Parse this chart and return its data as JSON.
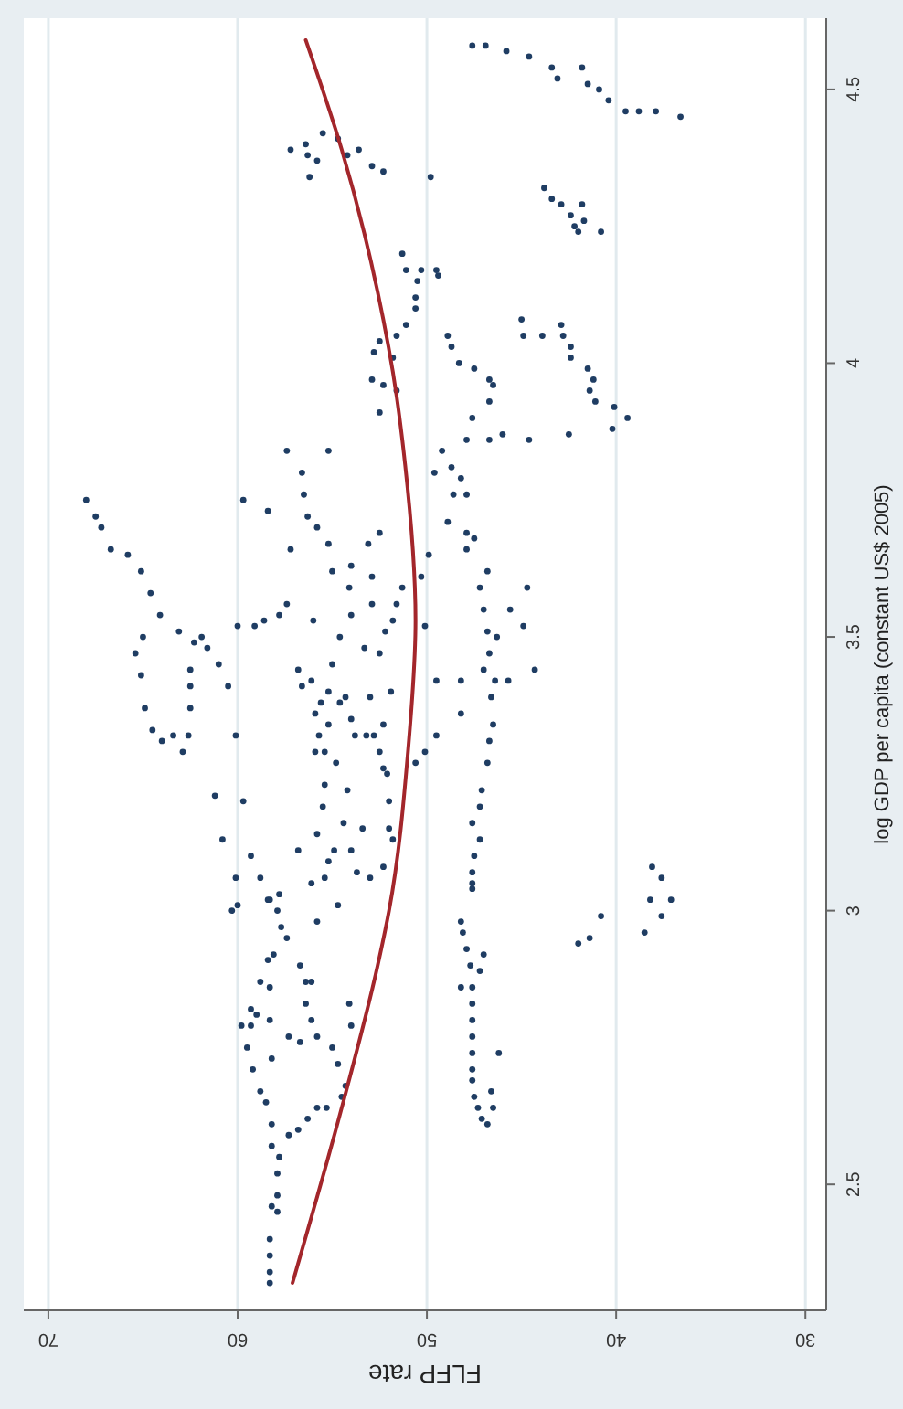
{
  "chart_data": {
    "type": "scatter",
    "xlabel": "FLFP rate",
    "ylabel": "log GDP per capita (constant US$ 2005)",
    "xlim": [
      71.3,
      28.9
    ],
    "ylim": [
      2.27,
      4.63
    ],
    "xticks": [
      70,
      60,
      50,
      40,
      30
    ],
    "yticks": [
      2.5,
      3,
      3.5,
      4,
      4.5
    ],
    "grid": "x",
    "series": [
      {
        "color": "#1f3d63",
        "marker": "circle",
        "values": [
          4.58,
          4.58,
          4.57,
          4.56,
          4.54,
          4.52,
          4.54,
          4.51,
          4.5,
          4.48,
          4.46,
          4.46,
          4.46,
          4.45,
          4.39,
          4.4,
          4.38,
          4.42,
          4.41,
          4.38,
          4.39,
          4.37,
          4.34,
          4.36,
          4.35,
          4.34,
          4.32,
          4.3,
          4.29,
          4.27,
          4.29,
          4.25,
          4.26,
          4.24,
          4.24,
          4.2,
          4.17,
          4.17,
          4.17,
          4.16,
          4.15,
          4.12,
          4.1,
          4.07,
          4.05,
          4.04,
          4.02,
          4.01,
          3.97,
          3.96,
          3.95,
          3.91,
          4.05,
          4.03,
          4.0,
          3.99,
          3.97,
          3.96,
          3.93,
          3.9,
          3.86,
          3.86,
          3.87,
          3.86,
          3.87,
          4.08,
          4.05,
          4.05,
          4.07,
          4.05,
          4.03,
          4.01,
          3.99,
          3.97,
          3.95,
          3.93,
          3.92,
          3.9,
          3.88,
          3.84,
          3.84,
          3.75,
          3.72,
          3.7,
          3.66,
          3.65,
          3.62,
          3.58,
          3.54,
          3.5,
          3.47,
          3.43,
          3.37,
          3.33,
          3.31,
          3.32,
          3.29,
          3.32,
          3.37,
          3.41,
          3.44,
          3.49,
          3.5,
          3.51,
          3.48,
          3.45,
          3.41,
          3.32,
          3.75,
          3.73,
          3.52,
          3.52,
          3.53,
          3.54,
          3.56,
          3.8,
          3.76,
          3.72,
          3.7,
          3.67,
          3.66,
          3.62,
          3.63,
          3.67,
          3.69,
          3.59,
          3.61,
          3.56,
          3.56,
          3.59,
          3.54,
          3.53,
          3.53,
          3.51,
          3.5,
          3.48,
          3.47,
          3.45,
          3.44,
          3.42,
          3.41,
          3.4,
          3.39,
          3.39,
          3.4,
          3.38,
          3.38,
          3.35,
          3.36,
          3.34,
          3.32,
          3.32,
          3.32,
          3.32,
          3.34,
          3.29,
          3.29,
          3.27,
          3.29,
          3.26,
          3.25,
          3.23,
          3.22,
          3.19,
          3.2,
          3.16,
          3.15,
          3.15,
          3.14,
          3.13,
          3.11,
          3.11,
          3.11,
          3.09,
          3.08,
          3.07,
          3.06,
          3.05,
          3.06,
          3.21,
          3.2,
          3.13,
          3.1,
          3.06,
          3.06,
          3.02,
          3.03,
          3.01,
          3.01,
          3.84,
          3.8,
          3.81,
          3.79,
          3.76,
          3.76,
          3.71,
          3.69,
          3.68,
          3.66,
          3.65,
          3.61,
          3.62,
          3.59,
          3.59,
          3.55,
          3.55,
          3.52,
          3.51,
          3.5,
          3.52,
          3.47,
          3.44,
          3.44,
          3.42,
          3.42,
          3.42,
          3.42,
          3.39,
          3.34,
          3.36,
          3.32,
          3.31,
          3.29,
          3.27,
          3.22,
          3.19,
          3.16,
          3.13,
          3.1,
          3.07,
          3.04,
          3.27,
          3.08,
          3.06,
          3.02,
          3.02,
          3.0,
          3.02,
          3.0,
          2.97,
          2.95,
          2.92,
          2.91,
          2.9,
          2.87,
          2.86,
          2.87,
          2.87,
          2.83,
          2.82,
          2.81,
          2.8,
          2.8,
          2.79,
          2.79,
          2.75,
          2.77,
          2.76,
          2.77,
          2.75,
          2.73,
          2.83,
          2.79,
          2.71,
          2.67,
          2.65,
          2.61,
          2.57,
          2.55,
          2.52,
          2.48,
          2.46,
          2.45,
          2.4,
          2.37,
          2.34,
          2.32,
          2.59,
          2.6,
          2.62,
          2.64,
          2.64,
          2.72,
          2.68,
          2.66,
          2.98,
          3.05,
          2.98,
          2.96,
          2.93,
          2.92,
          2.9,
          2.89,
          2.86,
          2.86,
          2.83,
          2.8,
          2.77,
          2.74,
          2.71,
          2.69,
          2.66,
          2.64,
          2.62,
          2.61,
          2.74,
          2.67,
          2.64,
          2.94,
          2.95,
          2.99,
          2.96,
          2.99
        ],
        "x": [
          47.6,
          46.9,
          45.8,
          44.6,
          43.4,
          43.1,
          41.8,
          41.5,
          40.9,
          40.4,
          39.5,
          38.8,
          37.9,
          36.6,
          57.2,
          56.4,
          56.3,
          55.5,
          54.7,
          54.2,
          53.6,
          55.8,
          56.2,
          52.9,
          52.3,
          49.8,
          43.8,
          43.4,
          42.9,
          42.4,
          41.8,
          42.2,
          41.7,
          42.0,
          40.8,
          51.3,
          51.1,
          50.3,
          49.5,
          49.4,
          50.5,
          50.6,
          50.6,
          51.1,
          51.6,
          52.5,
          52.8,
          51.8,
          52.9,
          52.3,
          51.6,
          52.5,
          48.9,
          48.7,
          48.3,
          47.5,
          46.7,
          46.5,
          46.7,
          47.6,
          47.9,
          46.7,
          46.0,
          44.6,
          42.5,
          45.0,
          44.9,
          43.9,
          42.9,
          42.8,
          42.4,
          42.4,
          41.5,
          41.2,
          41.4,
          41.1,
          40.1,
          39.4,
          40.2,
          57.4,
          55.2,
          68.0,
          67.5,
          67.2,
          66.7,
          65.8,
          65.1,
          64.6,
          64.1,
          65.0,
          65.4,
          65.1,
          64.9,
          64.5,
          64.0,
          63.4,
          62.9,
          62.6,
          62.5,
          62.5,
          62.5,
          62.3,
          61.9,
          63.1,
          61.6,
          61.0,
          60.5,
          60.1,
          59.7,
          58.4,
          60.0,
          59.1,
          58.6,
          57.8,
          57.4,
          56.6,
          56.5,
          56.3,
          55.8,
          55.2,
          57.2,
          55.0,
          54.0,
          53.1,
          52.5,
          54.1,
          52.9,
          52.9,
          51.6,
          51.3,
          54.0,
          51.8,
          56.0,
          52.2,
          54.6,
          53.3,
          52.5,
          55.0,
          56.8,
          56.1,
          56.6,
          55.2,
          54.3,
          53.0,
          51.9,
          55.6,
          54.6,
          54.0,
          55.9,
          55.2,
          55.7,
          53.8,
          53.2,
          52.8,
          52.3,
          55.9,
          55.4,
          54.8,
          52.5,
          52.3,
          52.1,
          55.4,
          54.2,
          55.5,
          52.0,
          54.4,
          53.4,
          52.0,
          55.8,
          51.8,
          56.8,
          54.9,
          54.0,
          55.2,
          52.3,
          53.7,
          53.0,
          56.1,
          55.4,
          61.2,
          59.7,
          60.8,
          59.3,
          60.1,
          58.8,
          58.4,
          57.8,
          60.0,
          54.7,
          49.2,
          49.6,
          48.7,
          48.2,
          48.6,
          47.9,
          48.9,
          47.9,
          47.5,
          47.9,
          49.9,
          50.3,
          46.8,
          47.2,
          44.7,
          47.0,
          45.6,
          50.1,
          46.8,
          46.3,
          44.9,
          46.7,
          47.0,
          44.3,
          49.5,
          48.2,
          46.4,
          45.7,
          46.6,
          46.5,
          48.2,
          49.5,
          46.7,
          50.1,
          46.8,
          47.1,
          47.2,
          47.6,
          47.2,
          47.5,
          47.6,
          47.6,
          50.6,
          38.1,
          37.6,
          38.2,
          37.1,
          60.3,
          58.3,
          57.9,
          57.7,
          57.4,
          58.1,
          58.4,
          56.7,
          58.8,
          58.3,
          56.4,
          56.1,
          56.4,
          59.3,
          59.0,
          58.3,
          56.1,
          59.8,
          59.3,
          59.5,
          57.3,
          56.7,
          55.8,
          55.0,
          58.2,
          54.1,
          54.0,
          59.2,
          58.8,
          58.5,
          58.2,
          58.2,
          57.8,
          57.9,
          57.9,
          58.2,
          57.9,
          58.3,
          58.3,
          58.3,
          58.3,
          57.3,
          56.8,
          56.3,
          55.8,
          55.3,
          54.7,
          54.3,
          54.5,
          55.8,
          47.6,
          48.2,
          48.1,
          47.9,
          47.0,
          47.7,
          47.2,
          48.2,
          47.6,
          47.6,
          47.6,
          47.6,
          47.6,
          47.6,
          47.6,
          47.5,
          47.3,
          47.1,
          46.8,
          46.2,
          46.6,
          46.5,
          42.0,
          41.4,
          40.8,
          38.5,
          37.6
        ]
      },
      {
        "type": "line",
        "color": "#a3262b",
        "values": [
          2.32,
          2.64,
          2.9,
          3.0,
          3.29,
          3.53,
          3.86,
          3.94,
          4.13,
          4.39,
          4.59
        ],
        "x": [
          57.1,
          54.5,
          52.6,
          52.0,
          51.0,
          50.6,
          51.3,
          51.6,
          52.6,
          54.5,
          56.4
        ]
      }
    ]
  }
}
